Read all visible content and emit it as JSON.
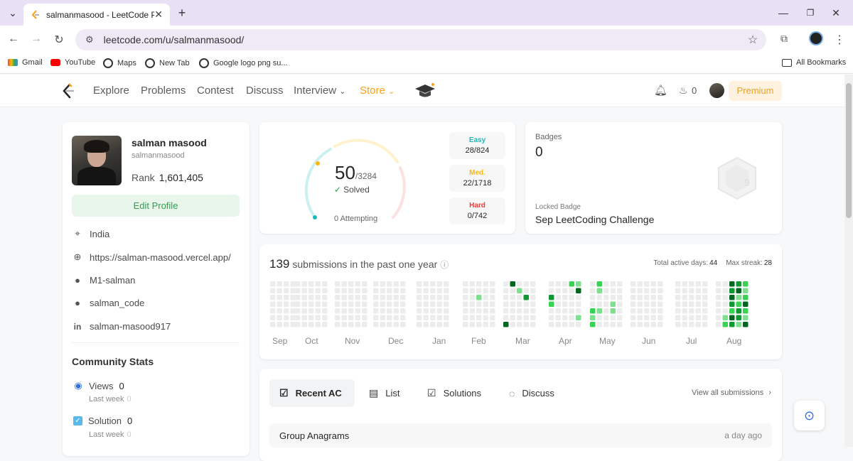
{
  "browser": {
    "tab_title": "salmanmasood - LeetCode Profi",
    "url": "leetcode.com/u/salmanmasood/",
    "bookmarks": [
      "Gmail",
      "YouTube",
      "Maps",
      "New Tab",
      "Google logo png su..."
    ],
    "all_bookmarks": "All Bookmarks"
  },
  "nav": {
    "items": [
      "Explore",
      "Problems",
      "Contest",
      "Discuss",
      "Interview",
      "Store"
    ],
    "streak": "0",
    "premium": "Premium"
  },
  "profile": {
    "name": "salman masood",
    "username": "salmanmasood",
    "rank_label": "Rank",
    "rank": "1,601,405",
    "edit_label": "Edit Profile",
    "location": "India",
    "website": "https://salman-masood.vercel.app/",
    "github": "M1-salman",
    "twitter": "salman_code",
    "linkedin": "salman-masood917"
  },
  "community": {
    "title": "Community Stats",
    "views_label": "Views",
    "views": "0",
    "views_last_week_label": "Last week",
    "views_last_week": "0",
    "solution_label": "Solution",
    "solution": "0",
    "solution_last_week_label": "Last week",
    "solution_last_week": "0"
  },
  "solved": {
    "count": "50",
    "total": "/3284",
    "label": "Solved",
    "attempting": "0 Attempting",
    "easy_label": "Easy",
    "easy": "28/824",
    "medium_label": "Med.",
    "medium": "22/1718",
    "hard_label": "Hard",
    "hard": "0/742"
  },
  "badges": {
    "title": "Badges",
    "count": "0",
    "locked_label": "Locked Badge",
    "locked_name": "Sep LeetCoding Challenge"
  },
  "heatmap": {
    "count": "139",
    "label": "submissions in the past one year",
    "active_days_label": "Total active days:",
    "active_days": "44",
    "max_streak_label": "Max streak:",
    "max_streak": "28",
    "months": [
      "Sep",
      "Oct",
      "Nov",
      "Dec",
      "Jan",
      "Feb",
      "Mar",
      "Apr",
      "May",
      "Jun",
      "Jul",
      "Aug"
    ]
  },
  "recent": {
    "tabs": [
      "Recent AC",
      "List",
      "Solutions",
      "Discuss"
    ],
    "view_all": "View all submissions",
    "rows": [
      {
        "title": "Group Anagrams",
        "time": "a day ago"
      }
    ]
  },
  "colors": {
    "easy": "#1cb8b8",
    "medium": "#ffb700",
    "hard": "#f63737",
    "accent_green": "#2ea04b",
    "store_orange": "#ffa116"
  }
}
